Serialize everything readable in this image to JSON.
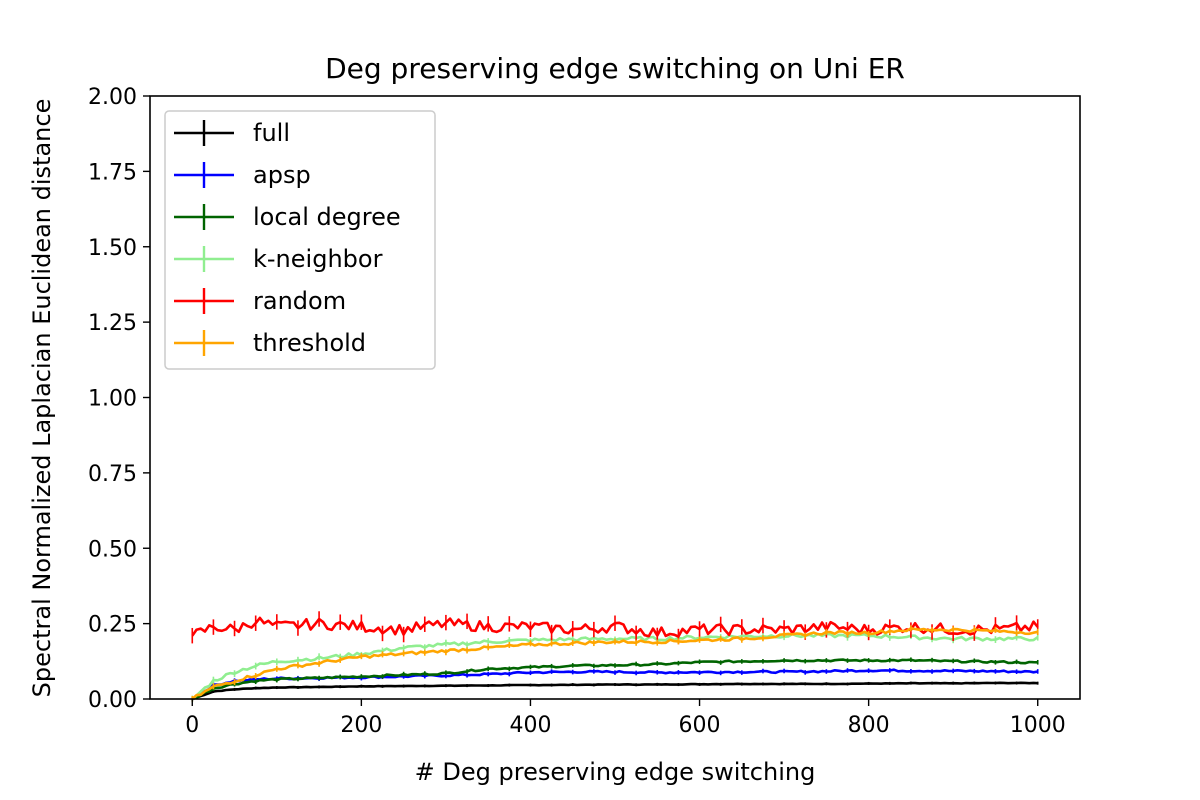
{
  "chart_data": {
    "type": "line",
    "title": "Deg preserving edge switching on Uni ER",
    "xlabel": "# Deg preserving edge switching",
    "ylabel": "Spectral Normalized Laplacian Euclidean distance",
    "xlim": [
      -50,
      1050
    ],
    "ylim": [
      0,
      2.0
    ],
    "xticks": [
      0,
      200,
      400,
      600,
      800,
      1000
    ],
    "yticks": [
      0.0,
      0.25,
      0.5,
      0.75,
      1.0,
      1.25,
      1.5,
      1.75,
      2.0
    ],
    "xtick_labels": [
      "0",
      "200",
      "400",
      "600",
      "800",
      "1000"
    ],
    "ytick_labels": [
      "0.00",
      "0.25",
      "0.50",
      "0.75",
      "1.00",
      "1.25",
      "1.50",
      "1.75",
      "2.00"
    ],
    "grid": false,
    "legend_position": "top-left",
    "x": [
      0,
      25,
      50,
      75,
      100,
      150,
      200,
      250,
      300,
      350,
      400,
      450,
      500,
      550,
      600,
      650,
      700,
      750,
      800,
      850,
      900,
      950,
      1000
    ],
    "series": [
      {
        "name": "full",
        "color": "#000000",
        "values": [
          0.0,
          0.025,
          0.032,
          0.036,
          0.038,
          0.04,
          0.042,
          0.043,
          0.044,
          0.045,
          0.046,
          0.047,
          0.048,
          0.048,
          0.049,
          0.05,
          0.05,
          0.05,
          0.051,
          0.052,
          0.052,
          0.053,
          0.053
        ]
      },
      {
        "name": "apsp",
        "color": "#0000ff",
        "values": [
          0.0,
          0.045,
          0.06,
          0.065,
          0.068,
          0.07,
          0.072,
          0.075,
          0.078,
          0.082,
          0.088,
          0.09,
          0.09,
          0.088,
          0.089,
          0.09,
          0.09,
          0.092,
          0.095,
          0.094,
          0.093,
          0.092,
          0.09
        ]
      },
      {
        "name": "local degree",
        "color": "#006400",
        "values": [
          0.0,
          0.035,
          0.05,
          0.06,
          0.065,
          0.07,
          0.075,
          0.08,
          0.085,
          0.1,
          0.105,
          0.11,
          0.112,
          0.115,
          0.122,
          0.125,
          0.128,
          0.128,
          0.128,
          0.128,
          0.125,
          0.123,
          0.12
        ]
      },
      {
        "name": "k-neighbor",
        "color": "#90ee90",
        "values": [
          0.0,
          0.06,
          0.09,
          0.11,
          0.125,
          0.135,
          0.15,
          0.17,
          0.18,
          0.19,
          0.195,
          0.198,
          0.2,
          0.2,
          0.205,
          0.208,
          0.21,
          0.21,
          0.21,
          0.205,
          0.2,
          0.2,
          0.2
        ]
      },
      {
        "name": "random",
        "color": "#ff0000",
        "values": [
          0.21,
          0.24,
          0.23,
          0.26,
          0.24,
          0.25,
          0.24,
          0.23,
          0.25,
          0.24,
          0.24,
          0.23,
          0.24,
          0.22,
          0.23,
          0.23,
          0.23,
          0.24,
          0.23,
          0.24,
          0.23,
          0.23,
          0.24
        ]
      },
      {
        "name": "threshold",
        "color": "#ffa500",
        "values": [
          0.0,
          0.04,
          0.06,
          0.08,
          0.1,
          0.12,
          0.14,
          0.15,
          0.16,
          0.17,
          0.18,
          0.185,
          0.19,
          0.19,
          0.195,
          0.2,
          0.21,
          0.22,
          0.22,
          0.23,
          0.23,
          0.225,
          0.22
        ]
      }
    ]
  }
}
